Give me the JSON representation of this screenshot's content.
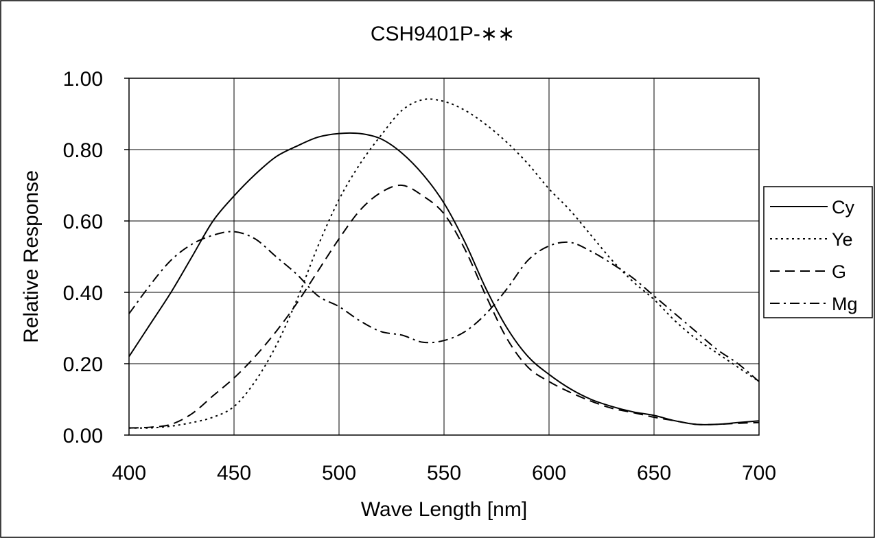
{
  "chart_data": {
    "type": "line",
    "title": "CSH9401P-∗∗",
    "xlabel": "Wave Length [nm]",
    "ylabel": "Relative Response",
    "xlim": [
      400,
      700
    ],
    "ylim": [
      0,
      1
    ],
    "x_ticks": [
      "400",
      "450",
      "500",
      "550",
      "600",
      "650",
      "700"
    ],
    "y_ticks": [
      "0.00",
      "0.20",
      "0.40",
      "0.60",
      "0.80",
      "1.00"
    ],
    "grid": true,
    "legend_position": "right",
    "x": [
      400,
      410,
      420,
      430,
      440,
      450,
      460,
      470,
      480,
      490,
      500,
      510,
      520,
      530,
      540,
      550,
      560,
      570,
      580,
      590,
      600,
      610,
      620,
      630,
      640,
      650,
      660,
      670,
      680,
      690,
      700
    ],
    "series": [
      {
        "name": "Cy",
        "style": "solid",
        "color": "#000000",
        "values": [
          0.22,
          0.31,
          0.4,
          0.5,
          0.6,
          0.67,
          0.73,
          0.78,
          0.81,
          0.835,
          0.845,
          0.845,
          0.83,
          0.79,
          0.73,
          0.65,
          0.54,
          0.41,
          0.3,
          0.22,
          0.17,
          0.13,
          0.1,
          0.08,
          0.065,
          0.055,
          0.04,
          0.03,
          0.03,
          0.035,
          0.04
        ]
      },
      {
        "name": "Ye",
        "style": "dotted",
        "color": "#000000",
        "values": [
          0.02,
          0.02,
          0.025,
          0.035,
          0.05,
          0.08,
          0.15,
          0.25,
          0.38,
          0.53,
          0.66,
          0.76,
          0.84,
          0.91,
          0.94,
          0.935,
          0.91,
          0.87,
          0.82,
          0.76,
          0.69,
          0.63,
          0.56,
          0.49,
          0.43,
          0.38,
          0.32,
          0.27,
          0.23,
          0.19,
          0.15
        ]
      },
      {
        "name": "G",
        "style": "dashed",
        "color": "#000000",
        "values": [
          0.02,
          0.022,
          0.03,
          0.06,
          0.11,
          0.16,
          0.22,
          0.29,
          0.37,
          0.46,
          0.55,
          0.63,
          0.68,
          0.7,
          0.67,
          0.62,
          0.52,
          0.39,
          0.27,
          0.19,
          0.15,
          0.12,
          0.095,
          0.075,
          0.063,
          0.05,
          0.04,
          0.03,
          0.03,
          0.033,
          0.035
        ]
      },
      {
        "name": "Mg",
        "style": "dash-dot",
        "color": "#000000",
        "values": [
          0.34,
          0.42,
          0.49,
          0.535,
          0.56,
          0.57,
          0.55,
          0.5,
          0.45,
          0.39,
          0.36,
          0.32,
          0.29,
          0.28,
          0.26,
          0.265,
          0.29,
          0.34,
          0.41,
          0.49,
          0.53,
          0.54,
          0.515,
          0.48,
          0.44,
          0.39,
          0.34,
          0.29,
          0.24,
          0.2,
          0.15
        ]
      }
    ]
  }
}
